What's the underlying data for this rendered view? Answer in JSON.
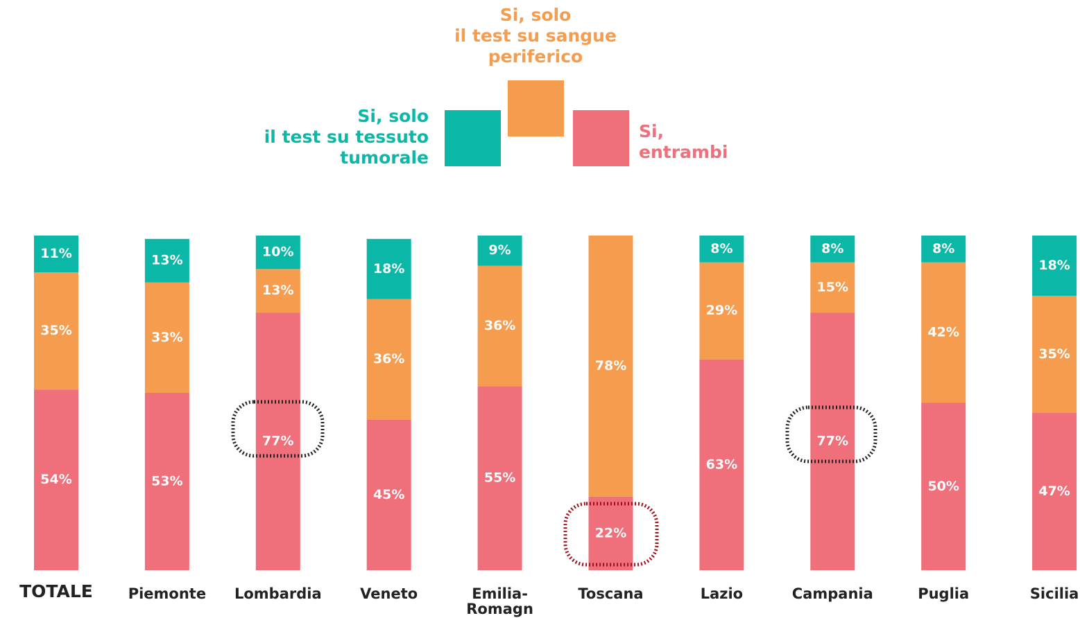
{
  "chart_data": {
    "type": "stacked_bar",
    "categories": [
      "TOTALE",
      "Piemonte",
      "Lombardia",
      "Veneto",
      "Emilia-Romagna",
      "Toscana",
      "Lazio",
      "Campania",
      "Puglia",
      "Sicilia"
    ],
    "ylim": [
      0,
      100
    ],
    "series": [
      {
        "name": "Si,\nentrambi",
        "color": "#ef6f7a",
        "values": [
          54,
          53,
          77,
          45,
          55,
          22,
          63,
          77,
          50,
          47
        ],
        "value_labels": [
          "54%",
          "53%",
          "77%",
          "45%",
          "55%",
          "22%",
          "63%",
          "77%",
          "50%",
          "47%"
        ]
      },
      {
        "name": "Si, solo\nil test su sangue\nperiferico",
        "color": "#f59c4f",
        "values": [
          35,
          33,
          13,
          36,
          36,
          78,
          29,
          15,
          42,
          35
        ],
        "value_labels": [
          "35%",
          "33%",
          "13%",
          "36%",
          "36%",
          "78%",
          "29%",
          "15%",
          "42%",
          "35%"
        ]
      },
      {
        "name": "Si, solo\nil test su tessuto\ntumorale",
        "color": "#0bb8a8",
        "values": [
          11,
          13,
          10,
          18,
          9,
          null,
          8,
          8,
          8,
          18
        ],
        "value_labels": [
          "11%",
          "13%",
          "10%",
          "18%",
          "9%",
          null,
          "8%",
          "8%",
          "8%",
          "18%"
        ]
      }
    ]
  }
}
